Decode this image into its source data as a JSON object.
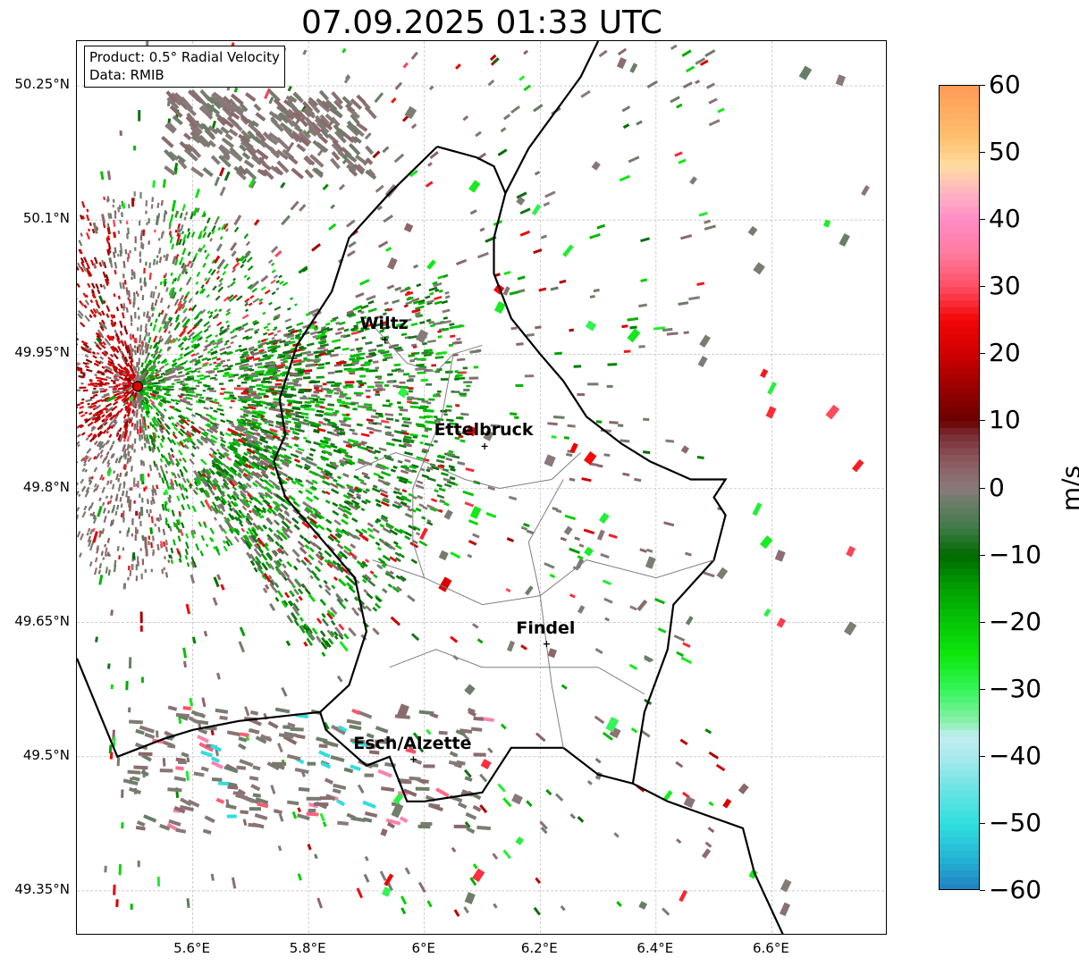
{
  "title": "07.09.2025 01:33 UTC",
  "info": {
    "product": "Product: 0.5° Radial Velocity",
    "data": "Data: RMIB"
  },
  "map": {
    "lon_range": [
      5.4,
      6.8
    ],
    "lat_range": [
      49.3,
      50.3
    ],
    "lat_ticks": [
      "50.25°N",
      "50.1°N",
      "49.95°N",
      "49.8°N",
      "49.65°N",
      "49.5°N",
      "49.35°N"
    ],
    "lon_ticks": [
      "5.6°E",
      "5.8°E",
      "6°E",
      "6.2°E",
      "6.4°E",
      "6.6°E"
    ],
    "radar_site": {
      "lon": 5.505,
      "lat": 49.914
    },
    "cities": [
      {
        "name": "Wiltz",
        "lon": 5.932,
        "lat": 49.966
      },
      {
        "name": "Ettelbruck",
        "lon": 6.104,
        "lat": 49.847
      },
      {
        "name": "Findel",
        "lon": 6.211,
        "lat": 49.626
      },
      {
        "name": "Esch/Alzette",
        "lon": 5.981,
        "lat": 49.497
      }
    ],
    "gridlines": true
  },
  "colorbar": {
    "label": "m/s",
    "min": -60,
    "max": 60,
    "ticks": [
      "60",
      "50",
      "40",
      "30",
      "20",
      "10",
      "0",
      "−10",
      "−20",
      "−30",
      "−40",
      "−50",
      "−60"
    ],
    "colors": {
      "high": "#ff9e57",
      "zero": "#8c7a7a",
      "neg_strong": "#006400",
      "neg_bright": "#00e600",
      "low": "#1f7fc0"
    }
  }
}
